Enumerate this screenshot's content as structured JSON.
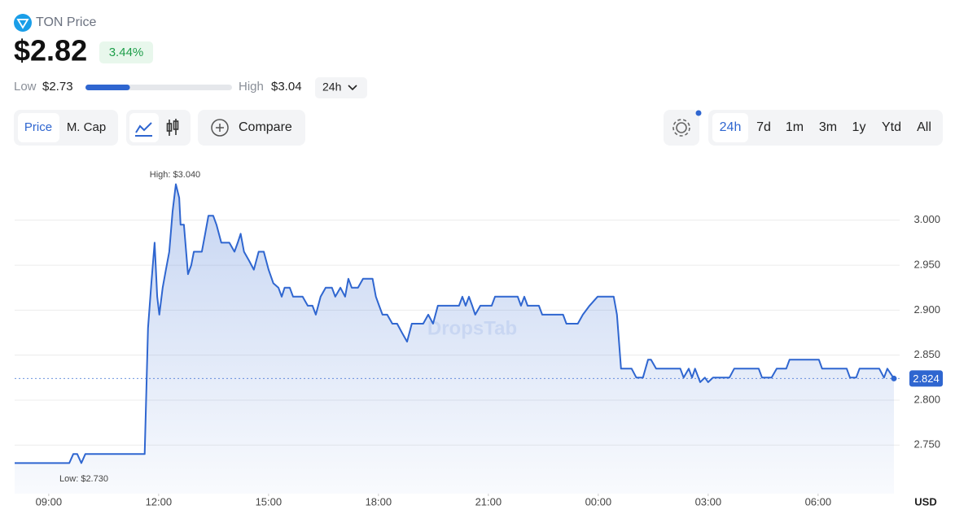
{
  "header": {
    "title": "TON Price",
    "price": "$2.82",
    "change": "3.44%",
    "low_label": "Low",
    "low": "$2.73",
    "high_label": "High",
    "high": "$3.04",
    "range_period": "24h"
  },
  "toolbar": {
    "metrics": [
      "Price",
      "M. Cap"
    ],
    "compare": "Compare",
    "timeframes": [
      "24h",
      "7d",
      "1m",
      "3m",
      "1y",
      "Ytd",
      "All"
    ]
  },
  "chart_data": {
    "type": "line",
    "color": "#2f66d0",
    "grid": true,
    "watermark": "DropsTab",
    "y_unit": "USD",
    "annotations": [
      "High: $3.040",
      "Low: $2.730"
    ],
    "xlim": [
      8.07,
      32.07
    ],
    "ylim": [
      2.696,
      3.064
    ],
    "xticks": [
      {
        "value": 9,
        "label": "09:00"
      },
      {
        "value": 12,
        "label": "12:00"
      },
      {
        "value": 15,
        "label": "15:00"
      },
      {
        "value": 18,
        "label": "18:00"
      },
      {
        "value": 21,
        "label": "21:00"
      },
      {
        "value": 24,
        "label": "00:00"
      },
      {
        "value": 27,
        "label": "03:00"
      },
      {
        "value": 30,
        "label": "06:00"
      }
    ],
    "yticks": [
      {
        "value": 2.75,
        "label": "2.750"
      },
      {
        "value": 2.8,
        "label": "2.800"
      },
      {
        "value": 2.85,
        "label": "2.850"
      },
      {
        "value": 2.9,
        "label": "2.900"
      },
      {
        "value": 2.95,
        "label": "2.950"
      },
      {
        "value": 3.0,
        "label": "3.000"
      }
    ],
    "x": [
      8.07,
      9.56,
      9.67,
      9.78,
      9.89,
      10.0,
      11.62,
      11.71,
      11.8,
      11.89,
      11.96,
      12.02,
      12.11,
      12.2,
      12.29,
      12.38,
      12.47,
      12.56,
      12.6,
      12.69,
      12.8,
      12.89,
      12.96,
      13.18,
      13.27,
      13.36,
      13.49,
      13.58,
      13.71,
      13.93,
      14.07,
      14.16,
      14.24,
      14.33,
      14.47,
      14.6,
      14.73,
      14.87,
      15.0,
      15.13,
      15.27,
      15.36,
      15.44,
      15.58,
      15.67,
      15.93,
      16.07,
      16.2,
      16.29,
      16.42,
      16.56,
      16.73,
      16.82,
      16.96,
      17.09,
      17.18,
      17.27,
      17.44,
      17.58,
      17.84,
      17.93,
      18.02,
      18.11,
      18.24,
      18.38,
      18.51,
      18.64,
      18.78,
      18.91,
      19.22,
      19.36,
      19.49,
      19.62,
      20.2,
      20.29,
      20.38,
      20.47,
      20.56,
      20.64,
      20.78,
      21.09,
      21.18,
      21.8,
      21.89,
      21.98,
      22.07,
      22.38,
      22.47,
      23.04,
      23.13,
      23.44,
      23.58,
      23.76,
      23.98,
      24.42,
      24.51,
      24.62,
      24.91,
      25.04,
      25.22,
      25.36,
      25.44,
      25.58,
      26.24,
      26.33,
      26.47,
      26.56,
      26.64,
      26.78,
      26.91,
      27.0,
      27.13,
      27.58,
      27.71,
      28.38,
      28.47,
      28.73,
      28.87,
      29.13,
      29.22,
      30.02,
      30.11,
      30.78,
      30.87,
      31.04,
      31.13,
      31.67,
      31.8,
      31.89,
      32.07
    ],
    "values": [
      2.73,
      2.73,
      2.74,
      2.74,
      2.73,
      2.74,
      2.74,
      2.88,
      2.93,
      2.975,
      2.915,
      2.895,
      2.925,
      2.945,
      2.965,
      3.01,
      3.04,
      3.025,
      2.995,
      2.995,
      2.94,
      2.95,
      2.965,
      2.965,
      2.985,
      3.005,
      3.005,
      2.995,
      2.975,
      2.975,
      2.965,
      2.975,
      2.985,
      2.965,
      2.955,
      2.945,
      2.965,
      2.965,
      2.945,
      2.93,
      2.925,
      2.915,
      2.925,
      2.925,
      2.915,
      2.915,
      2.905,
      2.905,
      2.895,
      2.915,
      2.925,
      2.925,
      2.915,
      2.925,
      2.915,
      2.935,
      2.925,
      2.925,
      2.935,
      2.935,
      2.915,
      2.905,
      2.895,
      2.895,
      2.885,
      2.885,
      2.875,
      2.865,
      2.885,
      2.885,
      2.895,
      2.885,
      2.905,
      2.905,
      2.915,
      2.905,
      2.915,
      2.905,
      2.895,
      2.905,
      2.905,
      2.915,
      2.915,
      2.905,
      2.915,
      2.905,
      2.905,
      2.895,
      2.895,
      2.885,
      2.885,
      2.895,
      2.905,
      2.915,
      2.915,
      2.895,
      2.835,
      2.835,
      2.825,
      2.825,
      2.845,
      2.845,
      2.835,
      2.835,
      2.825,
      2.835,
      2.825,
      2.835,
      2.82,
      2.825,
      2.82,
      2.825,
      2.825,
      2.835,
      2.835,
      2.825,
      2.825,
      2.835,
      2.835,
      2.845,
      2.845,
      2.835,
      2.835,
      2.825,
      2.825,
      2.835,
      2.835,
      2.825,
      2.835,
      2.824
    ]
  }
}
